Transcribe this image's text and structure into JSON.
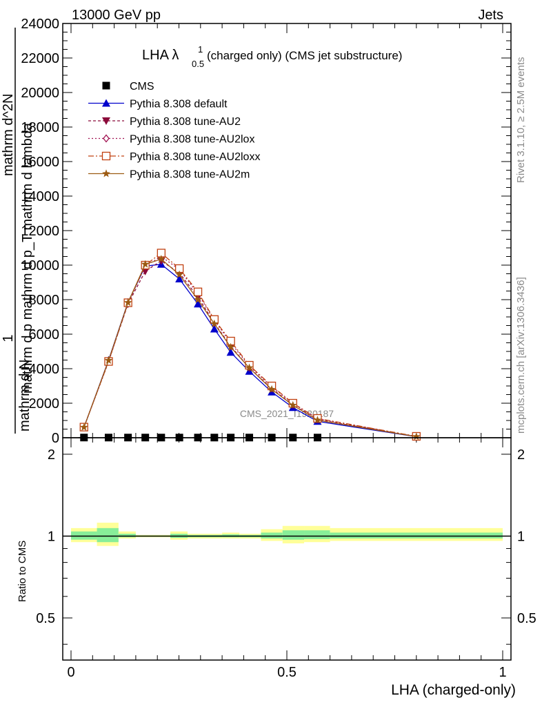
{
  "header": {
    "left": "13000 GeV pp",
    "right": "Jets"
  },
  "side_labels": {
    "rivet": "Rivet 3.1.10, ≥ 2.5M events",
    "mcplots": "mcplots.cern.ch [arXiv:1306.3436]"
  },
  "watermark": "CMS_2021_I1920187",
  "main_ylabel": {
    "l1": "1",
    "l2": "mathrm d N",
    "l3": "mathrm d p mathrm d p_T mathrm d lambda",
    "l4": "mathrm d^2N"
  },
  "ratio_ylabel": "Ratio to CMS",
  "chart_data": {
    "type": "line",
    "title": {
      "main": "LHA λ",
      "sup": "1",
      "sub": "0.5",
      "rest": "(charged only) (CMS jet substructure)"
    },
    "xlabel": "LHA (charged-only)",
    "xlim": [
      0,
      1
    ],
    "xticks": [
      {
        "v": 0,
        "label": "0"
      },
      {
        "v": 0.5,
        "label": "0.5"
      },
      {
        "v": 1,
        "label": "1"
      }
    ],
    "ylim": [
      0,
      24000
    ],
    "yticks": [
      {
        "v": 0,
        "label": "0"
      },
      {
        "v": 2000,
        "label": "2000"
      },
      {
        "v": 4000,
        "label": "4000"
      },
      {
        "v": 6000,
        "label": "6000"
      },
      {
        "v": 8000,
        "label": "8000"
      },
      {
        "v": 10000,
        "label": "10000"
      },
      {
        "v": 12000,
        "label": "12000"
      },
      {
        "v": 14000,
        "label": "14000"
      },
      {
        "v": 16000,
        "label": "16000"
      },
      {
        "v": 18000,
        "label": "18000"
      },
      {
        "v": 20000,
        "label": "20000"
      },
      {
        "v": 22000,
        "label": "22000"
      },
      {
        "v": 24000,
        "label": "24000"
      }
    ],
    "x": [
      0.03,
      0.087,
      0.132,
      0.172,
      0.209,
      0.251,
      0.294,
      0.332,
      0.37,
      0.413,
      0.465,
      0.514,
      0.571,
      0.8
    ],
    "legend_position": "top-left",
    "series": [
      {
        "name": "CMS",
        "color": "#000000",
        "marker": "square",
        "dash": "",
        "values": [
          12,
          10,
          10,
          10,
          10,
          10,
          10,
          10,
          10,
          10,
          10,
          10,
          10,
          null
        ]
      },
      {
        "name": "Pythia 8.308 default",
        "color": "#0000cc",
        "marker": "triangle-up",
        "dash": "",
        "values": [
          600,
          4500,
          7850,
          9950,
          10050,
          9200,
          7750,
          6300,
          4950,
          3850,
          2650,
          1750,
          950,
          60
        ]
      },
      {
        "name": "Pythia 8.308 tune-AU2",
        "color": "#8b0a3a",
        "marker": "triangle-down",
        "dash": "4,3",
        "values": [
          620,
          4450,
          7750,
          9650,
          10250,
          9550,
          8150,
          6650,
          5300,
          4050,
          2850,
          1900,
          1050,
          70
        ]
      },
      {
        "name": "Pythia 8.308 tune-AU2lox",
        "color": "#a01050",
        "marker": "diamond-open",
        "dash": "2,3",
        "values": [
          610,
          4400,
          7800,
          9950,
          10500,
          9750,
          8350,
          6800,
          5500,
          4150,
          2950,
          1980,
          1100,
          75
        ]
      },
      {
        "name": "Pythia 8.308 tune-AU2loxx",
        "color": "#c04010",
        "marker": "square-open",
        "dash": "8,3,2,3",
        "values": [
          615,
          4420,
          7820,
          10000,
          10700,
          9800,
          8450,
          6850,
          5600,
          4200,
          3000,
          2000,
          1120,
          80
        ]
      },
      {
        "name": "Pythia 8.308 tune-AU2m",
        "color": "#9c5a12",
        "marker": "star",
        "dash": "",
        "values": [
          605,
          4480,
          7830,
          10050,
          10350,
          9450,
          8000,
          6600,
          5250,
          4050,
          2800,
          1880,
          1020,
          65
        ]
      }
    ],
    "ratio": {
      "ylim": [
        0.35,
        2.3
      ],
      "log": true,
      "yticks": [
        {
          "v": 0.5,
          "label": "0.5"
        },
        {
          "v": 1,
          "label": "1"
        },
        {
          "v": 2,
          "label": "2"
        }
      ],
      "bands": [
        {
          "x0": 0.0,
          "x1": 0.06,
          "yellow": [
            0.95,
            1.07
          ],
          "green": [
            0.97,
            1.04
          ]
        },
        {
          "x0": 0.06,
          "x1": 0.11,
          "yellow": [
            0.92,
            1.12
          ],
          "green": [
            0.95,
            1.07
          ]
        },
        {
          "x0": 0.11,
          "x1": 0.15,
          "yellow": [
            0.98,
            1.04
          ],
          "green": [
            0.99,
            1.02
          ]
        },
        {
          "x0": 0.15,
          "x1": 0.23,
          "yellow": [
            0.99,
            1.01
          ],
          "green": [
            0.995,
            1.005
          ]
        },
        {
          "x0": 0.23,
          "x1": 0.27,
          "yellow": [
            0.97,
            1.04
          ],
          "green": [
            0.985,
            1.02
          ]
        },
        {
          "x0": 0.27,
          "x1": 0.35,
          "yellow": [
            0.98,
            1.02
          ],
          "green": [
            0.99,
            1.01
          ]
        },
        {
          "x0": 0.35,
          "x1": 0.39,
          "yellow": [
            0.98,
            1.03
          ],
          "green": [
            0.99,
            1.015
          ]
        },
        {
          "x0": 0.39,
          "x1": 0.44,
          "yellow": [
            0.98,
            1.02
          ],
          "green": [
            0.99,
            1.01
          ]
        },
        {
          "x0": 0.44,
          "x1": 0.49,
          "yellow": [
            0.96,
            1.06
          ],
          "green": [
            0.98,
            1.03
          ]
        },
        {
          "x0": 0.49,
          "x1": 0.54,
          "yellow": [
            0.94,
            1.09
          ],
          "green": [
            0.97,
            1.05
          ]
        },
        {
          "x0": 0.54,
          "x1": 0.6,
          "yellow": [
            0.95,
            1.09
          ],
          "green": [
            0.975,
            1.05
          ]
        },
        {
          "x0": 0.6,
          "x1": 1.0,
          "yellow": [
            0.96,
            1.07
          ],
          "green": [
            0.98,
            1.03
          ]
        }
      ]
    }
  }
}
